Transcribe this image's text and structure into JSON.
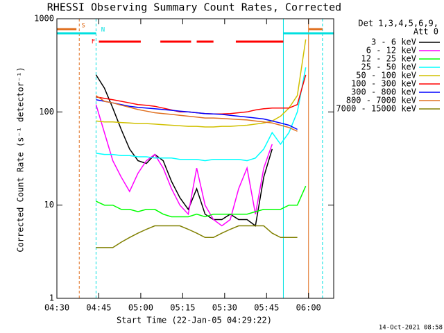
{
  "chart_data": {
    "type": "line",
    "title": "RHESSI Observing Summary Count Rates, Corrected",
    "x_label": "Start Time (22-Jan-05 04:29:22)",
    "y_label": "Corrected Count Rate (s⁻¹ detector⁻¹)",
    "detectors": "Det 1,3,4,5,6,9,",
    "attenuator": "Att 0",
    "timestamp": "14-Oct-2021 08:58",
    "log_y": true,
    "xlim": [
      "04:30",
      "06:09"
    ],
    "xticks": [
      "04:30",
      "04:45",
      "05:00",
      "05:15",
      "05:30",
      "05:45",
      "06:00"
    ],
    "ylim": [
      1,
      1000
    ],
    "yticks": [
      1,
      10,
      100,
      1000
    ],
    "x": [
      "04:44",
      "04:47",
      "04:50",
      "04:53",
      "04:56",
      "04:59",
      "05:02",
      "05:05",
      "05:08",
      "05:11",
      "05:14",
      "05:17",
      "05:20",
      "05:23",
      "05:26",
      "05:29",
      "05:32",
      "05:35",
      "05:38",
      "05:41",
      "05:44",
      "05:47",
      "05:50",
      "05:53",
      "05:56",
      "05:59"
    ],
    "series": [
      {
        "name": "3 - 6 keV",
        "color": "#000000",
        "values": [
          250,
          180,
          110,
          65,
          40,
          30,
          28,
          35,
          30,
          18,
          12,
          9,
          15,
          8,
          7,
          7,
          8,
          7,
          7,
          6,
          20,
          40,
          null,
          null,
          120,
          null
        ]
      },
      {
        "name": "6 - 12 keV",
        "color": "#ff00ff",
        "values": [
          120,
          60,
          30,
          20,
          14,
          22,
          30,
          35,
          25,
          15,
          10,
          8,
          25,
          10,
          7,
          6,
          7,
          15,
          25,
          8,
          25,
          45,
          null,
          null,
          null,
          null
        ]
      },
      {
        "name": "12 - 25 keV",
        "color": "#00ff00",
        "values": [
          11,
          10,
          10,
          9,
          9,
          8.5,
          9,
          9,
          8,
          7.5,
          7.5,
          7.5,
          8,
          7.5,
          8,
          8,
          8,
          8,
          8,
          8.5,
          9,
          9,
          9,
          10,
          10,
          16
        ]
      },
      {
        "name": "25 - 50 keV",
        "color": "#00ffff",
        "values": [
          36,
          35,
          35,
          34,
          34,
          33,
          33,
          32,
          32,
          32,
          31,
          31,
          31,
          30,
          31,
          31,
          31,
          31,
          30,
          32,
          40,
          60,
          45,
          60,
          100,
          300
        ]
      },
      {
        "name": "50 - 100 keV",
        "color": "#d0c000",
        "values": [
          80,
          78,
          78,
          77,
          76,
          75,
          75,
          74,
          73,
          72,
          71,
          70,
          70,
          69,
          69,
          70,
          70,
          71,
          72,
          74,
          76,
          80,
          90,
          110,
          150,
          600
        ]
      },
      {
        "name": "100 - 300 keV",
        "color": "#ff0000",
        "values": [
          145,
          140,
          135,
          130,
          125,
          120,
          118,
          115,
          110,
          105,
          100,
          100,
          98,
          96,
          95,
          95,
          96,
          98,
          100,
          105,
          108,
          110,
          110,
          110,
          120,
          250
        ]
      },
      {
        "name": "300 - 800 keV",
        "color": "#0000ff",
        "values": [
          135,
          130,
          125,
          120,
          115,
          112,
          110,
          108,
          106,
          104,
          102,
          100,
          98,
          96,
          95,
          94,
          92,
          90,
          88,
          86,
          84,
          80,
          76,
          72,
          65,
          null
        ]
      },
      {
        "name": "800 - 7000 keV",
        "color": "#e07020",
        "values": [
          150,
          130,
          125,
          118,
          112,
          106,
          102,
          98,
          96,
          94,
          92,
          90,
          88,
          86,
          86,
          85,
          84,
          83,
          82,
          80,
          78,
          76,
          72,
          68,
          62,
          null
        ]
      },
      {
        "name": "7000 - 15000 keV",
        "color": "#808000",
        "values": [
          3.5,
          3.5,
          3.5,
          4,
          4.5,
          5,
          5.5,
          6,
          6,
          6,
          6,
          5.5,
          5,
          4.5,
          4.5,
          5,
          5.5,
          6,
          6,
          6,
          6,
          5,
          4.5,
          4.5,
          4.5,
          null
        ]
      }
    ],
    "flags": [
      {
        "label": "S",
        "color": "#e07020",
        "segments": [
          [
            "04:30",
            "04:37"
          ],
          [
            "06:00",
            "06:05"
          ]
        ]
      },
      {
        "label": "N",
        "color": "#00e0e0",
        "segments": [
          [
            "04:30",
            "04:44"
          ],
          [
            "05:51",
            "06:09"
          ]
        ]
      },
      {
        "label": "F",
        "color": "#ff0000",
        "segments": [
          [
            "04:45",
            "05:00"
          ],
          [
            "05:07",
            "05:18"
          ],
          [
            "05:20",
            "05:26"
          ],
          [
            "05:34",
            "05:51"
          ]
        ]
      }
    ],
    "markers": [
      {
        "time": "04:38",
        "color": "#e07020",
        "style": "dashed"
      },
      {
        "time": "04:44",
        "color": "#00e0e0",
        "style": "dashed"
      },
      {
        "time": "05:51",
        "color": "#00e0e0",
        "style": "solid"
      },
      {
        "time": "06:00",
        "color": "#e07020",
        "style": "solid"
      },
      {
        "time": "06:05",
        "color": "#00e0e0",
        "style": "dashed"
      }
    ]
  }
}
